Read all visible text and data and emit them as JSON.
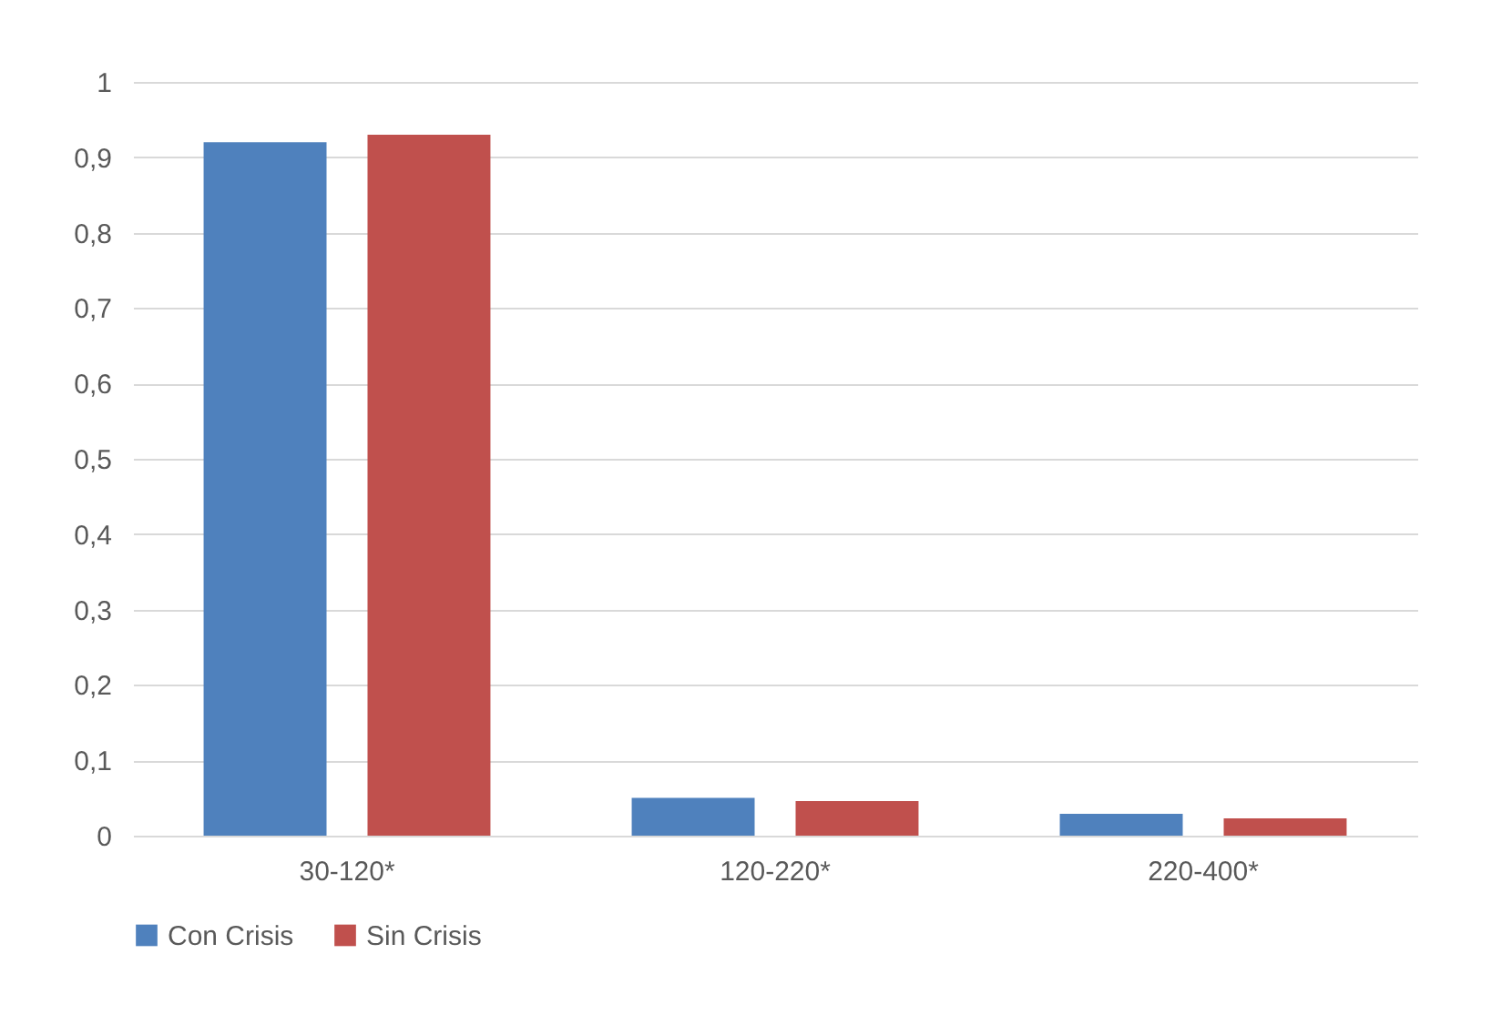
{
  "chart_data": {
    "type": "bar",
    "categories": [
      "30-120*",
      "120-220*",
      "220-400*"
    ],
    "series": [
      {
        "name": "Con Crisis",
        "color": "#4f81bd",
        "values": [
          0.92,
          0.05,
          0.029
        ]
      },
      {
        "name": "Sin Crisis",
        "color": "#c0504d",
        "values": [
          0.93,
          0.046,
          0.023
        ]
      }
    ],
    "ylim": [
      0,
      1
    ],
    "yticks": [
      0,
      {
        "value": 0.1,
        "label": "0,1"
      },
      {
        "value": 0.2,
        "label": "0,2"
      },
      {
        "value": 0.3,
        "label": "0,3"
      },
      {
        "value": 0.4,
        "label": "0,4"
      },
      {
        "value": 0.5,
        "label": "0,5"
      },
      {
        "value": 0.6,
        "label": "0,6"
      },
      {
        "value": 0.7,
        "label": "0,7"
      },
      {
        "value": 0.8,
        "label": "0,8"
      },
      {
        "value": 0.9,
        "label": "0,9"
      },
      1
    ],
    "grid": "y",
    "legend": "bottom"
  }
}
